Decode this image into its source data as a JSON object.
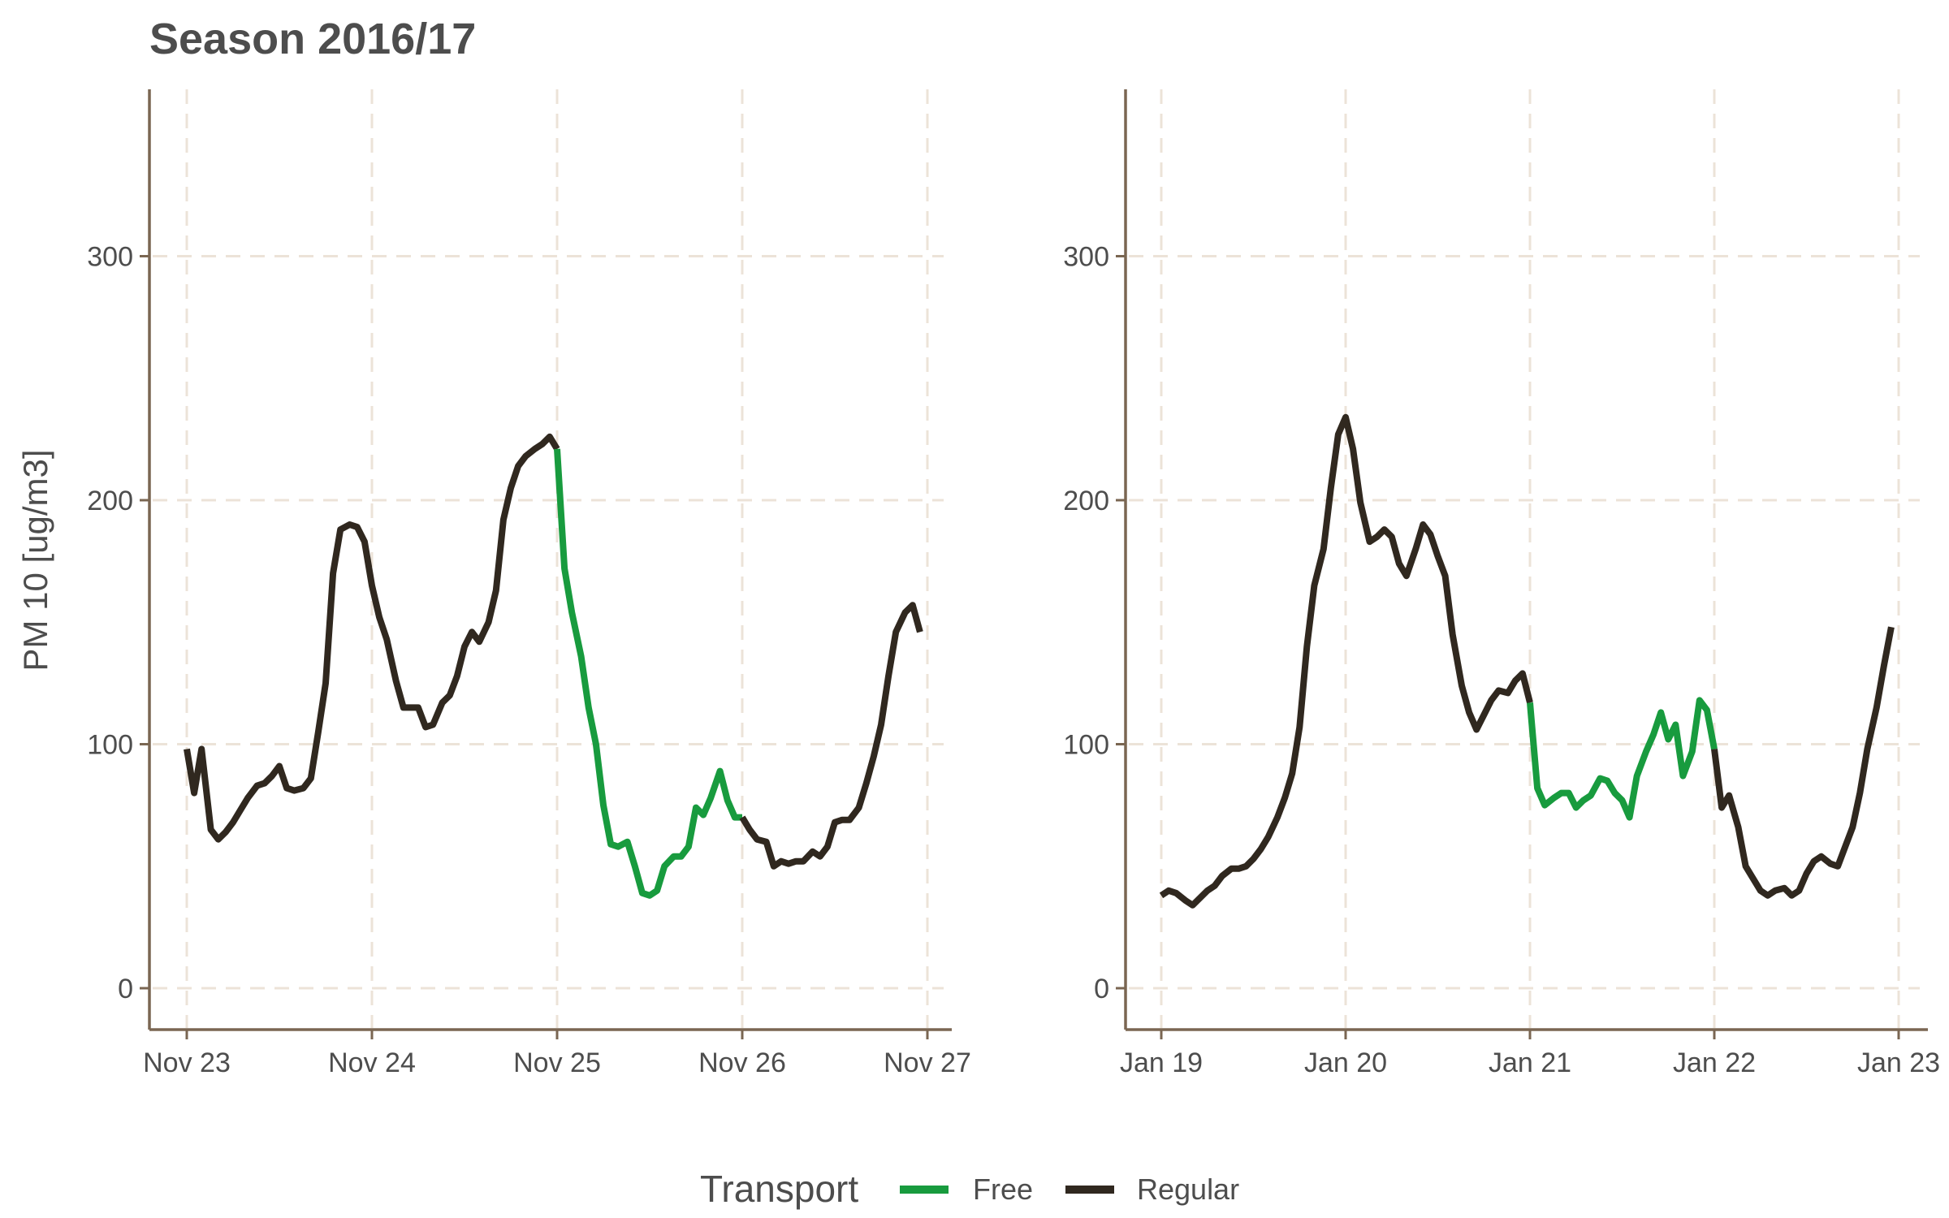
{
  "title": "Season 2016/17",
  "ylabel": "PM 10 [ug/m3]",
  "legend": {
    "title": "Transport",
    "items": [
      {
        "label": "Free",
        "color": "#189b3e"
      },
      {
        "label": "Regular",
        "color": "#30281f"
      }
    ]
  },
  "chart_data": [
    {
      "type": "line",
      "title": "Season 2016/17",
      "xlabel": "",
      "ylabel": "PM 10 [ug/m3]",
      "xlim": [
        0,
        4.1
      ],
      "ylim": [
        -17,
        365
      ],
      "xticks": [
        0,
        1,
        2,
        3,
        4
      ],
      "xtick_labels": [
        "Nov 23",
        "Nov 24",
        "Nov 25",
        "Nov 26",
        "Nov 27"
      ],
      "yticks": [
        0,
        100,
        200,
        300
      ],
      "grid": true,
      "legend_position": "bottom",
      "segments": [
        {
          "series": "Regular",
          "points": [
            [
              0.0,
              98
            ],
            [
              0.04,
              80
            ],
            [
              0.08,
              98
            ],
            [
              0.13,
              65
            ],
            [
              0.17,
              61
            ],
            [
              0.21,
              64
            ],
            [
              0.25,
              68
            ],
            [
              0.29,
              73
            ],
            [
              0.33,
              78
            ],
            [
              0.38,
              83
            ],
            [
              0.42,
              84
            ],
            [
              0.46,
              87
            ],
            [
              0.5,
              91
            ],
            [
              0.54,
              82
            ],
            [
              0.58,
              81
            ],
            [
              0.63,
              82
            ],
            [
              0.67,
              86
            ],
            [
              0.71,
              105
            ],
            [
              0.75,
              125
            ],
            [
              0.79,
              170
            ],
            [
              0.83,
              188
            ],
            [
              0.88,
              190
            ],
            [
              0.92,
              189
            ],
            [
              0.96,
              183
            ],
            [
              1.0,
              165
            ],
            [
              1.04,
              152
            ],
            [
              1.08,
              143
            ],
            [
              1.13,
              126
            ],
            [
              1.17,
              115
            ],
            [
              1.21,
              115
            ],
            [
              1.25,
              115
            ],
            [
              1.29,
              107
            ],
            [
              1.33,
              108
            ],
            [
              1.38,
              117
            ],
            [
              1.42,
              120
            ],
            [
              1.46,
              128
            ],
            [
              1.5,
              140
            ],
            [
              1.54,
              146
            ],
            [
              1.58,
              142
            ],
            [
              1.63,
              150
            ],
            [
              1.67,
              163
            ],
            [
              1.71,
              192
            ],
            [
              1.75,
              205
            ],
            [
              1.79,
              214
            ],
            [
              1.83,
              218
            ],
            [
              1.88,
              221
            ],
            [
              1.92,
              223
            ],
            [
              1.96,
              226
            ],
            [
              2.0,
              221
            ]
          ]
        },
        {
          "series": "Free",
          "points": [
            [
              2.0,
              221
            ],
            [
              2.04,
              172
            ],
            [
              2.08,
              154
            ],
            [
              2.13,
              136
            ],
            [
              2.17,
              115
            ],
            [
              2.21,
              100
            ],
            [
              2.25,
              75
            ],
            [
              2.29,
              59
            ],
            [
              2.33,
              58
            ],
            [
              2.38,
              60
            ],
            [
              2.42,
              50
            ],
            [
              2.46,
              39
            ],
            [
              2.5,
              38
            ],
            [
              2.54,
              40
            ],
            [
              2.58,
              50
            ],
            [
              2.63,
              54
            ],
            [
              2.67,
              54
            ],
            [
              2.71,
              58
            ],
            [
              2.75,
              74
            ],
            [
              2.79,
              71
            ],
            [
              2.83,
              78
            ],
            [
              2.88,
              89
            ],
            [
              2.92,
              77
            ],
            [
              2.96,
              70
            ],
            [
              3.0,
              70
            ]
          ]
        },
        {
          "series": "Regular",
          "points": [
            [
              3.0,
              70
            ],
            [
              3.04,
              65
            ],
            [
              3.08,
              61
            ],
            [
              3.13,
              60
            ],
            [
              3.17,
              50
            ],
            [
              3.21,
              52
            ],
            [
              3.25,
              51
            ],
            [
              3.29,
              52
            ],
            [
              3.33,
              52
            ],
            [
              3.38,
              56
            ],
            [
              3.42,
              54
            ],
            [
              3.46,
              58
            ],
            [
              3.5,
              68
            ],
            [
              3.54,
              69
            ],
            [
              3.58,
              69
            ],
            [
              3.63,
              74
            ],
            [
              3.67,
              84
            ],
            [
              3.71,
              95
            ],
            [
              3.75,
              108
            ],
            [
              3.79,
              128
            ],
            [
              3.83,
              146
            ],
            [
              3.88,
              154
            ],
            [
              3.92,
              157
            ],
            [
              3.96,
              146
            ]
          ]
        }
      ]
    },
    {
      "type": "line",
      "title": "",
      "xlabel": "",
      "ylabel": "",
      "xlim": [
        0,
        4.1
      ],
      "ylim": [
        -17,
        365
      ],
      "xticks": [
        0,
        1,
        2,
        3,
        4
      ],
      "xtick_labels": [
        "Jan 19",
        "Jan 20",
        "Jan 21",
        "Jan 22",
        "Jan 23"
      ],
      "yticks": [
        0,
        100,
        200,
        300
      ],
      "grid": true,
      "legend_position": "bottom",
      "segments": [
        {
          "series": "Regular",
          "points": [
            [
              0.0,
              38
            ],
            [
              0.04,
              40
            ],
            [
              0.08,
              39
            ],
            [
              0.13,
              36
            ],
            [
              0.17,
              34
            ],
            [
              0.21,
              37
            ],
            [
              0.25,
              40
            ],
            [
              0.29,
              42
            ],
            [
              0.33,
              46
            ],
            [
              0.38,
              49
            ],
            [
              0.42,
              49
            ],
            [
              0.46,
              50
            ],
            [
              0.5,
              53
            ],
            [
              0.54,
              57
            ],
            [
              0.58,
              62
            ],
            [
              0.63,
              70
            ],
            [
              0.67,
              78
            ],
            [
              0.71,
              88
            ],
            [
              0.75,
              107
            ],
            [
              0.79,
              140
            ],
            [
              0.83,
              165
            ],
            [
              0.88,
              180
            ],
            [
              0.92,
              205
            ],
            [
              0.96,
              227
            ],
            [
              1.0,
              234
            ],
            [
              1.04,
              221
            ],
            [
              1.08,
              199
            ],
            [
              1.13,
              183
            ],
            [
              1.17,
              185
            ],
            [
              1.21,
              188
            ],
            [
              1.25,
              185
            ],
            [
              1.29,
              174
            ],
            [
              1.33,
              169
            ],
            [
              1.38,
              180
            ],
            [
              1.42,
              190
            ],
            [
              1.46,
              186
            ],
            [
              1.5,
              177
            ],
            [
              1.54,
              169
            ],
            [
              1.58,
              145
            ],
            [
              1.63,
              124
            ],
            [
              1.67,
              113
            ],
            [
              1.71,
              106
            ],
            [
              1.75,
              112
            ],
            [
              1.79,
              118
            ],
            [
              1.83,
              122
            ],
            [
              1.88,
              121
            ],
            [
              1.92,
              126
            ],
            [
              1.96,
              129
            ],
            [
              2.0,
              117
            ]
          ]
        },
        {
          "series": "Free",
          "points": [
            [
              2.0,
              117
            ],
            [
              2.04,
              82
            ],
            [
              2.08,
              75
            ],
            [
              2.13,
              78
            ],
            [
              2.17,
              80
            ],
            [
              2.21,
              80
            ],
            [
              2.25,
              74
            ],
            [
              2.29,
              77
            ],
            [
              2.33,
              79
            ],
            [
              2.38,
              86
            ],
            [
              2.42,
              85
            ],
            [
              2.46,
              80
            ],
            [
              2.5,
              77
            ],
            [
              2.54,
              70
            ],
            [
              2.58,
              87
            ],
            [
              2.63,
              97
            ],
            [
              2.67,
              104
            ],
            [
              2.71,
              113
            ],
            [
              2.75,
              102
            ],
            [
              2.79,
              108
            ],
            [
              2.83,
              87
            ],
            [
              2.88,
              97
            ],
            [
              2.92,
              118
            ],
            [
              2.96,
              114
            ],
            [
              3.0,
              98
            ]
          ]
        },
        {
          "series": "Regular",
          "points": [
            [
              3.0,
              98
            ],
            [
              3.04,
              74
            ],
            [
              3.08,
              79
            ],
            [
              3.13,
              66
            ],
            [
              3.17,
              50
            ],
            [
              3.21,
              45
            ],
            [
              3.25,
              40
            ],
            [
              3.29,
              38
            ],
            [
              3.33,
              40
            ],
            [
              3.38,
              41
            ],
            [
              3.42,
              38
            ],
            [
              3.46,
              40
            ],
            [
              3.5,
              47
            ],
            [
              3.54,
              52
            ],
            [
              3.58,
              54
            ],
            [
              3.63,
              51
            ],
            [
              3.67,
              50
            ],
            [
              3.71,
              58
            ],
            [
              3.75,
              66
            ],
            [
              3.79,
              80
            ],
            [
              3.83,
              98
            ],
            [
              3.88,
              115
            ],
            [
              3.92,
              132
            ],
            [
              3.96,
              148
            ]
          ]
        }
      ]
    }
  ]
}
